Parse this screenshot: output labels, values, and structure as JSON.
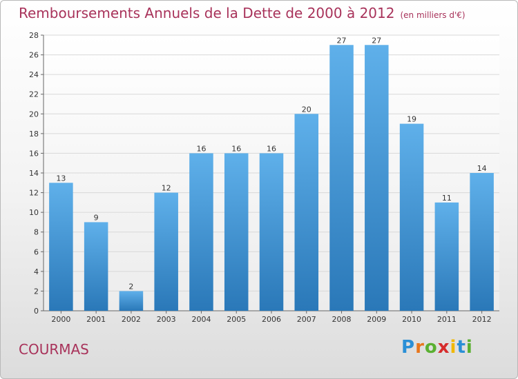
{
  "title": "Remboursements Annuels de la Dette de 2000 à 2012",
  "unit": "(en milliers d'€)",
  "town": "COURMAS",
  "logo": "Proxiti",
  "colors": {
    "title": "#a8325a",
    "bar_top": "#5fb0ea",
    "bar_bottom": "#2a78b8",
    "grid": "#d8d8d8"
  },
  "chart_data": {
    "type": "bar",
    "categories": [
      "2000",
      "2001",
      "2002",
      "2003",
      "2004",
      "2005",
      "2006",
      "2007",
      "2008",
      "2009",
      "2010",
      "2011",
      "2012"
    ],
    "values": [
      13,
      9,
      2,
      12,
      16,
      16,
      16,
      20,
      27,
      27,
      19,
      11,
      14
    ],
    "ylim": [
      0,
      28
    ],
    "yticks": [
      0,
      2,
      4,
      6,
      8,
      10,
      12,
      14,
      16,
      18,
      20,
      22,
      24,
      26,
      28
    ],
    "grid": true,
    "data_labels": true
  }
}
